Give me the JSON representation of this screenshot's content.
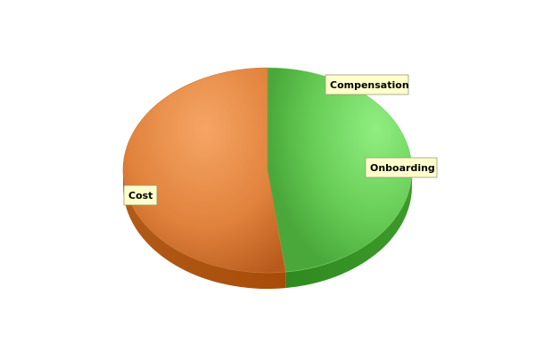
{
  "chart_data": {
    "type": "pie",
    "style": "3d",
    "title": "",
    "slices": [
      {
        "label": "Compensation",
        "value": 0,
        "color": "#66cc55"
      },
      {
        "label": "Onboarding",
        "value": 48,
        "color": "#66cc55"
      },
      {
        "label": "Cost",
        "value": 52,
        "color": "#e0823c"
      }
    ],
    "legend": "none",
    "label_box_color": "#ffffcc"
  }
}
